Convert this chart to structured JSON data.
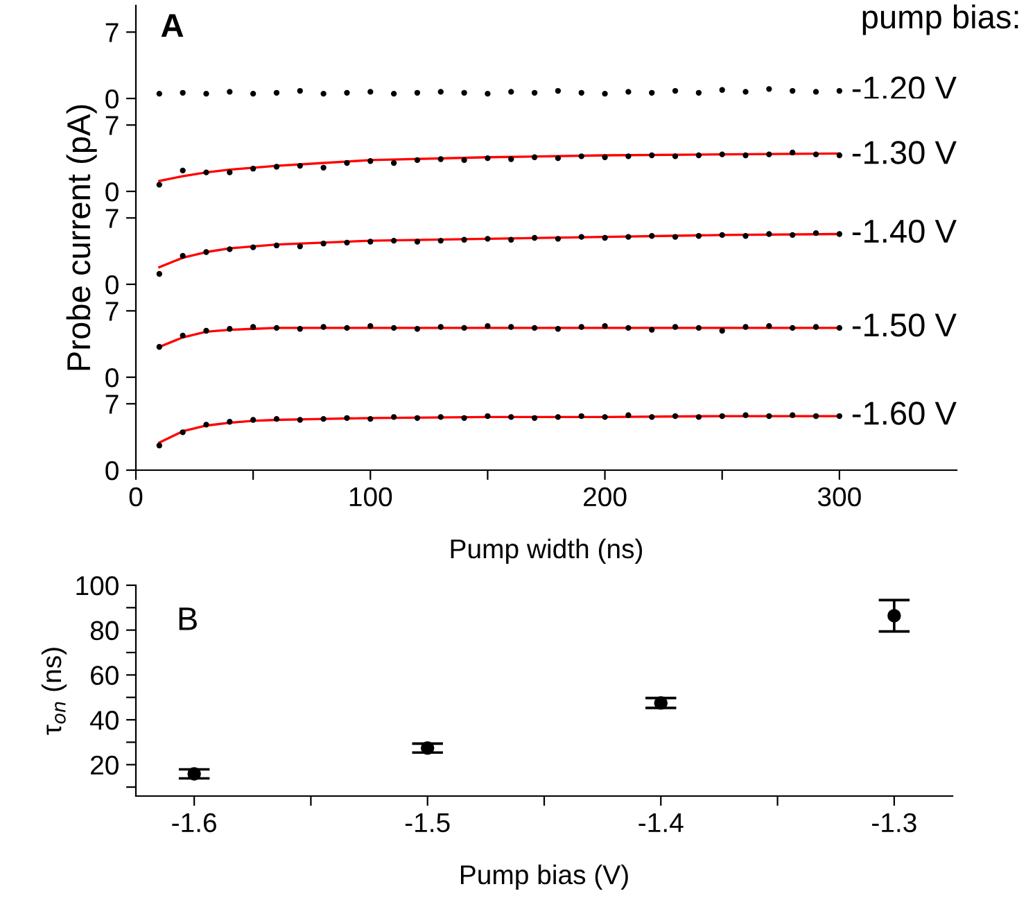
{
  "chart_data": [
    {
      "type": "scatter",
      "annotations": [
        "A",
        "pump bias:"
      ],
      "xlim": [
        0,
        350
      ],
      "ylim": [
        0,
        9.8
      ],
      "yticks": [
        0,
        7
      ],
      "tick_labels": "y",
      "series": [
        {
          "name": "-1.20 V",
          "color": "#000000",
          "marker": "circle",
          "x": [
            10,
            20,
            30,
            40,
            50,
            60,
            70,
            80,
            90,
            100,
            110,
            120,
            130,
            140,
            150,
            160,
            170,
            180,
            190,
            200,
            210,
            220,
            230,
            240,
            250,
            260,
            270,
            280,
            290,
            300
          ],
          "values": [
            0.5,
            0.6,
            0.5,
            0.7,
            0.5,
            0.6,
            0.8,
            0.5,
            0.6,
            0.7,
            0.5,
            0.6,
            0.7,
            0.6,
            0.5,
            0.7,
            0.6,
            0.8,
            0.6,
            0.5,
            0.7,
            0.6,
            0.8,
            0.6,
            0.9,
            0.7,
            1.0,
            0.8,
            0.7,
            0.8
          ]
        }
      ]
    },
    {
      "type": "scatter",
      "xlim": [
        0,
        350
      ],
      "ylim": [
        0,
        9.8
      ],
      "yticks": [
        0,
        7
      ],
      "tick_labels": "y",
      "series": [
        {
          "name": "-1.30 V",
          "color": "#000000",
          "marker": "circle",
          "x": [
            10,
            20,
            30,
            40,
            50,
            60,
            70,
            80,
            90,
            100,
            110,
            120,
            130,
            140,
            150,
            160,
            170,
            180,
            190,
            200,
            210,
            220,
            230,
            240,
            250,
            260,
            270,
            280,
            290,
            300
          ],
          "values": [
            0.7,
            2.2,
            2.0,
            2.0,
            2.4,
            2.6,
            2.7,
            2.5,
            3.0,
            3.2,
            3.0,
            3.3,
            3.4,
            3.3,
            3.5,
            3.4,
            3.6,
            3.5,
            3.7,
            3.6,
            3.7,
            3.8,
            3.7,
            3.8,
            3.9,
            3.8,
            3.9,
            4.1,
            3.9,
            3.8
          ]
        },
        {
          "type": "line",
          "color": "#ff0000",
          "x": [
            10,
            20,
            30,
            40,
            60,
            80,
            100,
            150,
            200,
            250,
            300
          ],
          "values": [
            1.1,
            1.6,
            2.0,
            2.3,
            2.7,
            3.0,
            3.3,
            3.6,
            3.8,
            3.9,
            4.0
          ]
        }
      ]
    },
    {
      "type": "scatter",
      "ylabel": "Probe current (pA)",
      "xlim": [
        0,
        350
      ],
      "ylim": [
        0,
        9.8
      ],
      "yticks": [
        0,
        7
      ],
      "tick_labels": "y",
      "series": [
        {
          "name": "-1.40 V",
          "color": "#000000",
          "marker": "circle",
          "x": [
            10,
            20,
            30,
            40,
            50,
            60,
            70,
            80,
            90,
            100,
            110,
            120,
            130,
            140,
            150,
            160,
            170,
            180,
            190,
            200,
            210,
            220,
            230,
            240,
            250,
            260,
            270,
            280,
            290,
            300
          ],
          "values": [
            1.1,
            3.0,
            3.4,
            3.7,
            3.9,
            4.1,
            4.0,
            4.3,
            4.4,
            4.5,
            4.6,
            4.5,
            4.6,
            4.7,
            4.8,
            4.7,
            4.9,
            4.8,
            5.0,
            4.9,
            5.0,
            5.1,
            5.0,
            5.1,
            5.2,
            5.1,
            5.3,
            5.2,
            5.4,
            5.3
          ]
        },
        {
          "type": "line",
          "color": "#ff0000",
          "x": [
            10,
            20,
            30,
            40,
            60,
            80,
            100,
            150,
            200,
            250,
            300
          ],
          "values": [
            1.8,
            2.8,
            3.4,
            3.8,
            4.2,
            4.4,
            4.6,
            4.8,
            5.0,
            5.2,
            5.3
          ]
        }
      ]
    },
    {
      "type": "scatter",
      "xlim": [
        0,
        350
      ],
      "ylim": [
        0,
        9.8
      ],
      "yticks": [
        0,
        7
      ],
      "tick_labels": "y",
      "series": [
        {
          "name": "-1.50 V",
          "color": "#000000",
          "marker": "circle",
          "x": [
            10,
            20,
            30,
            40,
            50,
            60,
            70,
            80,
            90,
            100,
            110,
            120,
            130,
            140,
            150,
            160,
            170,
            180,
            190,
            200,
            210,
            220,
            230,
            240,
            250,
            260,
            270,
            280,
            290,
            300
          ],
          "values": [
            3.2,
            4.4,
            4.9,
            5.1,
            5.3,
            5.2,
            5.1,
            5.3,
            5.2,
            5.4,
            5.2,
            5.1,
            5.3,
            5.2,
            5.4,
            5.3,
            5.2,
            5.1,
            5.3,
            5.4,
            5.2,
            5.0,
            5.3,
            5.2,
            4.9,
            5.3,
            5.4,
            5.2,
            5.3,
            5.2
          ]
        },
        {
          "type": "line",
          "color": "#ff0000",
          "x": [
            10,
            20,
            30,
            40,
            50,
            60,
            100,
            200,
            300
          ],
          "values": [
            3.2,
            4.2,
            4.8,
            5.0,
            5.1,
            5.2,
            5.2,
            5.2,
            5.2
          ]
        }
      ]
    },
    {
      "type": "scatter",
      "xlabel": "Pump width (ns)",
      "xlim": [
        0,
        350
      ],
      "ylim": [
        0,
        9.8
      ],
      "yticks": [
        0,
        7
      ],
      "xticks": [
        0,
        {
          "value": 50,
          "label": null
        },
        100,
        {
          "value": 150,
          "label": null
        },
        200,
        {
          "value": 250,
          "label": null
        },
        300
      ],
      "series": [
        {
          "name": "-1.60 V",
          "color": "#000000",
          "marker": "circle",
          "x": [
            10,
            20,
            30,
            40,
            50,
            60,
            70,
            80,
            90,
            100,
            110,
            120,
            130,
            140,
            150,
            160,
            170,
            180,
            190,
            200,
            210,
            220,
            230,
            240,
            250,
            260,
            270,
            280,
            290,
            300
          ],
          "values": [
            2.6,
            4.0,
            4.8,
            5.1,
            5.3,
            5.4,
            5.3,
            5.4,
            5.5,
            5.4,
            5.6,
            5.5,
            5.6,
            5.5,
            5.7,
            5.6,
            5.5,
            5.6,
            5.7,
            5.6,
            5.8,
            5.6,
            5.7,
            5.6,
            5.7,
            5.8,
            5.7,
            5.8,
            5.7,
            5.7
          ]
        },
        {
          "type": "line",
          "color": "#ff0000",
          "x": [
            10,
            20,
            30,
            40,
            50,
            60,
            80,
            100,
            150,
            200,
            250,
            300
          ],
          "values": [
            2.9,
            4.1,
            4.7,
            5.0,
            5.2,
            5.3,
            5.4,
            5.5,
            5.6,
            5.6,
            5.7,
            5.7
          ]
        }
      ]
    },
    {
      "type": "scatter",
      "annotations": [
        "B"
      ],
      "xlabel": "Pump bias (V)",
      "ylabel": "τ$_{on}$ (ns)",
      "xlim": [
        -1.625,
        -1.275
      ],
      "ylim": [
        6,
        100
      ],
      "xticks": [
        -1.6,
        {
          "value": -1.55,
          "label": null
        },
        -1.5,
        {
          "value": -1.45,
          "label": null
        },
        -1.4,
        {
          "value": -1.35,
          "label": null
        },
        -1.3
      ],
      "yticks": [
        {
          "value": 10,
          "label": null
        },
        20,
        {
          "value": 30,
          "label": null
        },
        40,
        {
          "value": 50,
          "label": null
        },
        60,
        {
          "value": 70,
          "label": null
        },
        80,
        {
          "value": 90,
          "label": null
        },
        100
      ],
      "marker": "circle",
      "series": [
        {
          "color": "#000000",
          "x": [
            -1.6,
            -1.5,
            -1.4,
            -1.3
          ],
          "values": [
            15.9,
            27.4,
            47.5,
            86.4
          ],
          "errors": [
            2,
            2,
            2.2,
            7
          ]
        }
      ]
    }
  ]
}
